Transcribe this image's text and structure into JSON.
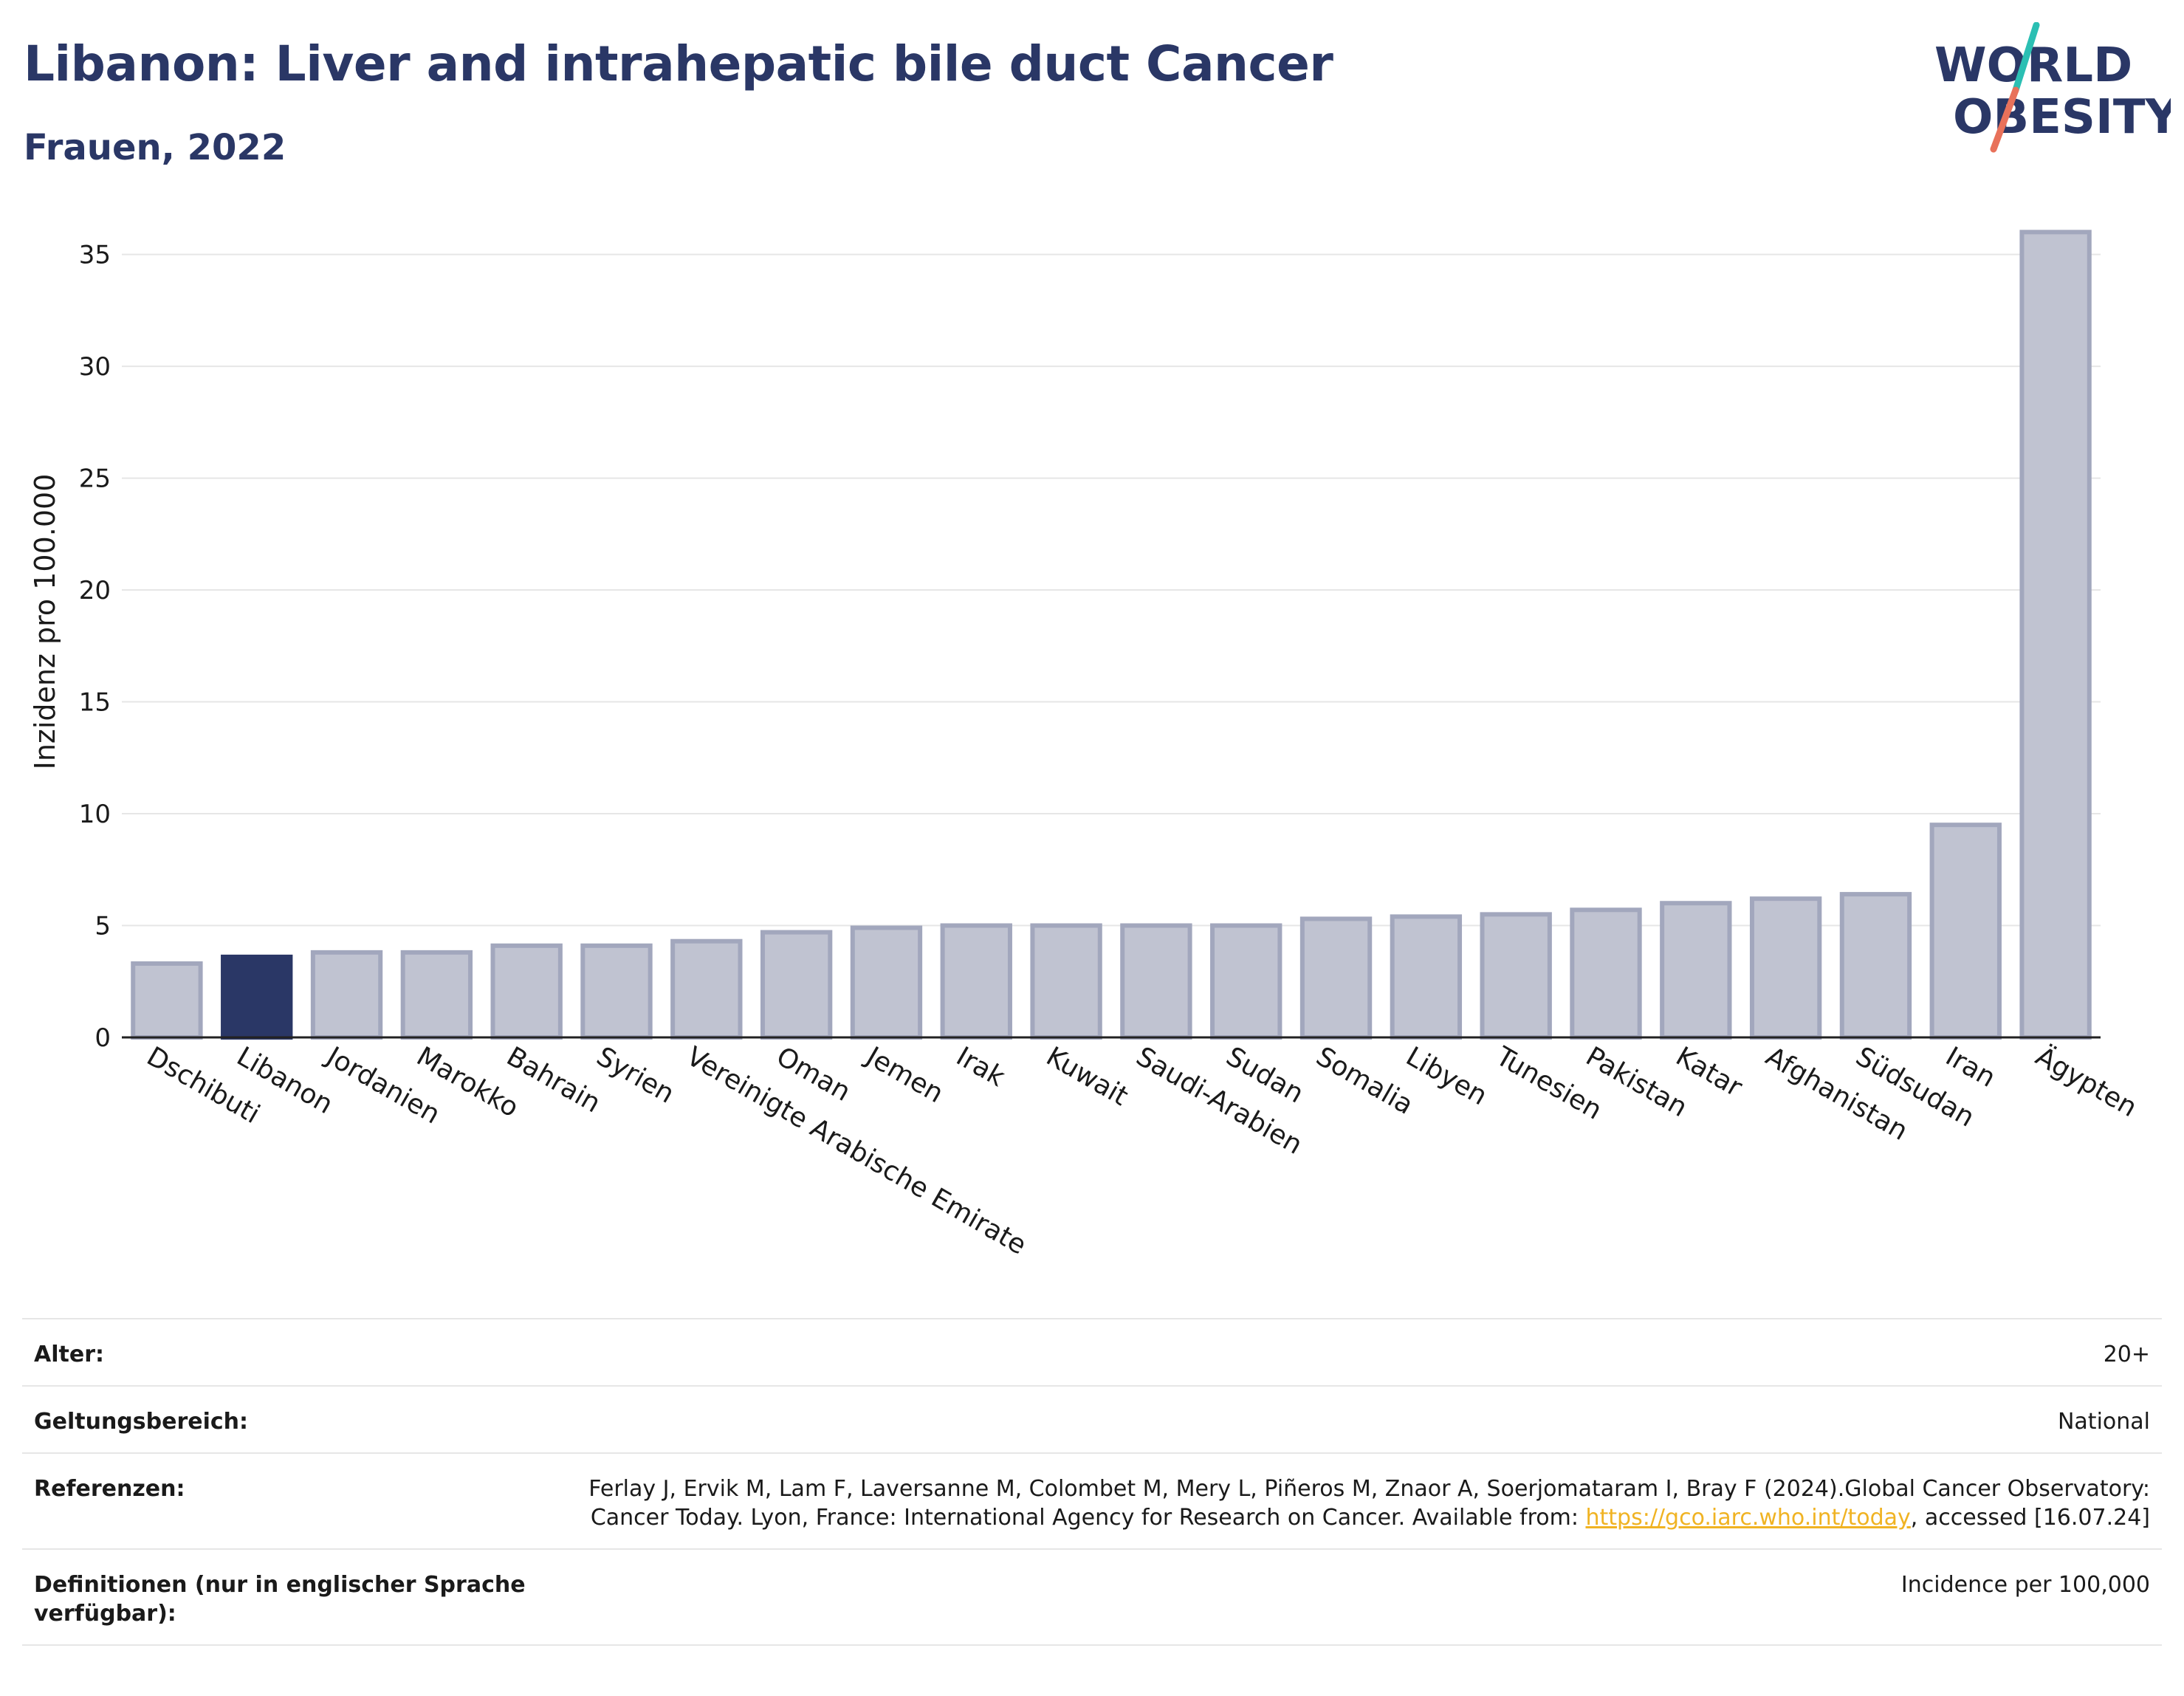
{
  "header": {
    "title": "Libanon: Liver and intrahepatic bile duct Cancer",
    "subtitle": "Frauen, 2022"
  },
  "logo": {
    "line1": "WORLD",
    "line2": "OBESITY",
    "colors": {
      "text": "#2a3766",
      "slash_top": "#2bbfb3",
      "slash_bottom": "#e8715a"
    }
  },
  "chart_data": {
    "type": "bar",
    "title": "Libanon: Liver and intrahepatic bile duct Cancer",
    "subtitle": "Frauen, 2022",
    "xlabel": "",
    "ylabel": "Inzidenz pro 100.000",
    "ylim": [
      0,
      37
    ],
    "yticks": [
      0,
      5,
      10,
      15,
      20,
      25,
      30,
      35
    ],
    "grid": true,
    "highlight": "Libanon",
    "categories": [
      "Dschibuti",
      "Libanon",
      "Jordanien",
      "Marokko",
      "Bahrain",
      "Syrien",
      "Vereinigte Arabische Emirate",
      "Oman",
      "Jemen",
      "Irak",
      "Kuwait",
      "Saudi-Arabien",
      "Sudan",
      "Somalia",
      "Libyen",
      "Tunesien",
      "Pakistan",
      "Katar",
      "Afghanistan",
      "Südsudan",
      "Iran",
      "Ägypten"
    ],
    "values": [
      3.3,
      3.6,
      3.8,
      3.8,
      4.1,
      4.1,
      4.3,
      4.7,
      4.9,
      5.0,
      5.0,
      5.0,
      5.0,
      5.3,
      5.4,
      5.5,
      5.7,
      6.0,
      6.2,
      6.4,
      9.5,
      36.0
    ],
    "colors": {
      "bar_fill": "#c0c3d1",
      "bar_stroke": "#a2a7bd",
      "highlight": "#2a3766",
      "grid": "#e6e6e6",
      "axis": "#222222"
    }
  },
  "meta": {
    "age_label": "Alter:",
    "age_value": "20+",
    "scope_label": "Geltungsbereich:",
    "scope_value": "National",
    "refs_label": "Referenzen:",
    "refs_text_1": "Ferlay J, Ervik M, Lam F, Laversanne M, Colombet M, Mery L, Piñeros M, Znaor A, Soerjomataram I, Bray F (2024).Global Cancer Observatory: Cancer Today. Lyon, France: International Agency for Research on Cancer. Available from: ",
    "refs_link": "https://gco.iarc.who.int/today",
    "refs_text_2": ", accessed [16.07.24]",
    "defs_label": "Definitionen (nur in englischer Sprache verfügbar):",
    "defs_value": "Incidence per 100,000"
  }
}
